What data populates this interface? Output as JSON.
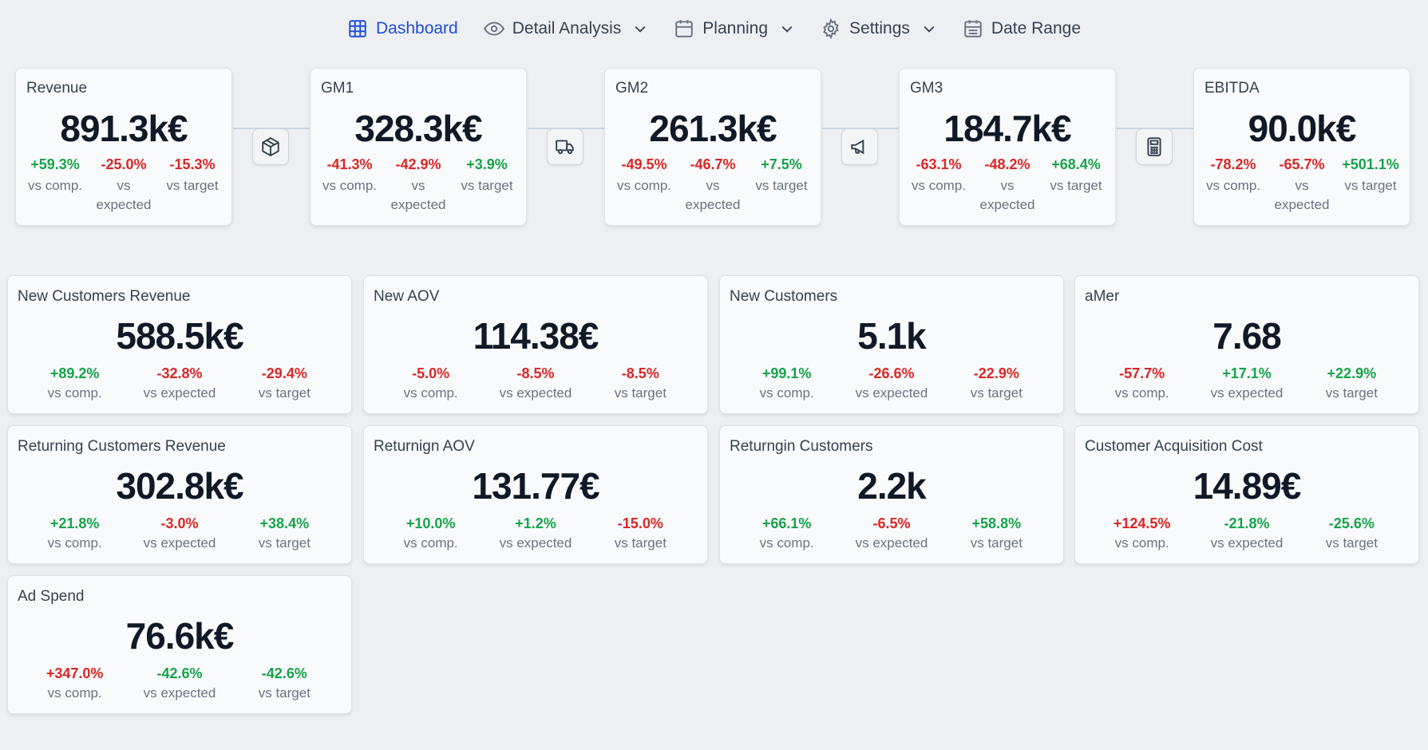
{
  "nav": {
    "dashboard": "Dashboard",
    "detail": "Detail Analysis",
    "planning": "Planning",
    "settings": "Settings",
    "date_range": "Date Range"
  },
  "colors": {
    "positive": "#16a34a",
    "negative": "#dc2626",
    "accent": "#1d4ed8"
  },
  "labels": {
    "vs_comp": "vs comp.",
    "vs_expected": "vs expected",
    "vs_target": "vs target"
  },
  "chain": [
    {
      "title": "Revenue",
      "value": "891.3k€",
      "comp": "+59.3%",
      "expected": "-25.0%",
      "target": "-15.3%"
    },
    {
      "title": "GM1",
      "value": "328.3k€",
      "comp": "-41.3%",
      "expected": "-42.9%",
      "target": "+3.9%"
    },
    {
      "title": "GM2",
      "value": "261.3k€",
      "comp": "-49.5%",
      "expected": "-46.7%",
      "target": "+7.5%"
    },
    {
      "title": "GM3",
      "value": "184.7k€",
      "comp": "-63.1%",
      "expected": "-48.2%",
      "target": "+68.4%"
    },
    {
      "title": "EBITDA",
      "value": "90.0k€",
      "comp": "-78.2%",
      "expected": "-65.7%",
      "target": "+501.1%"
    }
  ],
  "chain_icons": [
    "box-icon",
    "truck-icon",
    "megaphone-icon",
    "calculator-icon"
  ],
  "cards": [
    {
      "title": "New Customers Revenue",
      "value": "588.5k€",
      "comp": "+89.2%",
      "expected": "-32.8%",
      "target": "-29.4%"
    },
    {
      "title": "New AOV",
      "value": "114.38€",
      "comp": "-5.0%",
      "expected": "-8.5%",
      "target": "-8.5%"
    },
    {
      "title": "New Customers",
      "value": "5.1k",
      "comp": "+99.1%",
      "expected": "-26.6%",
      "target": "-22.9%"
    },
    {
      "title": "aMer",
      "value": "7.68",
      "comp": "-57.7%",
      "expected": "+17.1%",
      "target": "+22.9%"
    },
    {
      "title": "Returning Customers Revenue",
      "value": "302.8k€",
      "comp": "+21.8%",
      "expected": "-3.0%",
      "target": "+38.4%"
    },
    {
      "title": "Returnign AOV",
      "value": "131.77€",
      "comp": "+10.0%",
      "expected": "+1.2%",
      "target": "-15.0%"
    },
    {
      "title": "Returngin Customers",
      "value": "2.2k",
      "comp": "+66.1%",
      "expected": "-6.5%",
      "target": "+58.8%"
    },
    {
      "title": "Customer Acquisition Cost",
      "value": "14.89€",
      "comp": "+124.5%",
      "expected": "-21.8%",
      "target": "-25.6%"
    },
    {
      "title": "Ad Spend",
      "value": "76.6k€",
      "comp": "+347.0%",
      "expected": "-42.6%",
      "target": "-42.6%"
    }
  ],
  "polarity": {
    "chain": [
      [
        "pos",
        "neg",
        "neg"
      ],
      [
        "neg",
        "neg",
        "pos"
      ],
      [
        "neg",
        "neg",
        "pos"
      ],
      [
        "neg",
        "neg",
        "pos"
      ],
      [
        "neg",
        "neg",
        "pos"
      ]
    ],
    "cards": [
      [
        "pos",
        "neg",
        "neg"
      ],
      [
        "neg",
        "neg",
        "neg"
      ],
      [
        "pos",
        "neg",
        "neg"
      ],
      [
        "neg",
        "pos",
        "pos"
      ],
      [
        "pos",
        "neg",
        "pos"
      ],
      [
        "pos",
        "pos",
        "neg"
      ],
      [
        "pos",
        "neg",
        "pos"
      ],
      [
        "neg",
        "pos",
        "pos"
      ],
      [
        "neg",
        "pos",
        "pos"
      ]
    ]
  }
}
